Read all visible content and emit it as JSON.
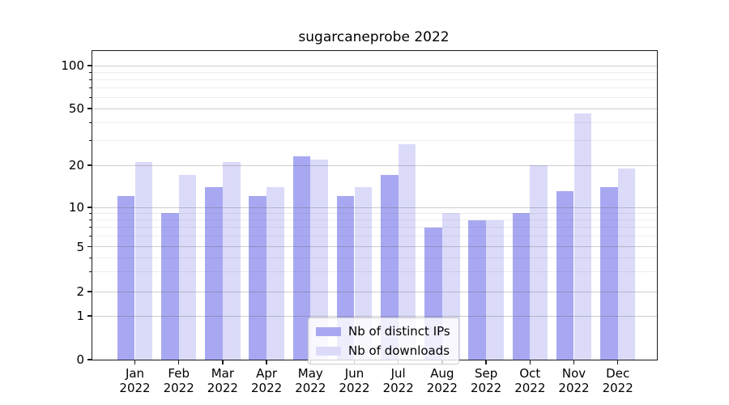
{
  "title": "sugarcaneprobe 2022",
  "chart_data": {
    "type": "bar",
    "title": "sugarcaneprobe 2022",
    "categories": [
      "Jan 2022",
      "Feb 2022",
      "Mar 2022",
      "Apr 2022",
      "May 2022",
      "Jun 2022",
      "Jul 2022",
      "Aug 2022",
      "Sep 2022",
      "Oct 2022",
      "Nov 2022",
      "Dec 2022"
    ],
    "series": [
      {
        "name": "Nb of distinct IPs",
        "color": "#a8a8f2",
        "values": [
          12,
          9,
          14,
          12,
          23,
          12,
          17,
          7,
          8,
          9,
          13,
          14
        ]
      },
      {
        "name": "Nb of downloads",
        "color": "#dbdbf9",
        "values": [
          21,
          17,
          21,
          14,
          22,
          14,
          28,
          9,
          8,
          20,
          46,
          19
        ]
      }
    ],
    "ylabel": "",
    "xlabel": "",
    "yscale": "log-like (symlog)",
    "yticks": [
      100,
      50,
      20,
      10,
      5,
      2,
      1,
      0
    ],
    "minor_yticks": [
      3,
      4,
      6,
      7,
      8,
      9,
      30,
      40,
      60,
      70,
      80,
      90
    ],
    "ylim": [
      0,
      130
    ],
    "grid": "both, horizontal only, drawn over bars",
    "legend_position": "lower center"
  }
}
